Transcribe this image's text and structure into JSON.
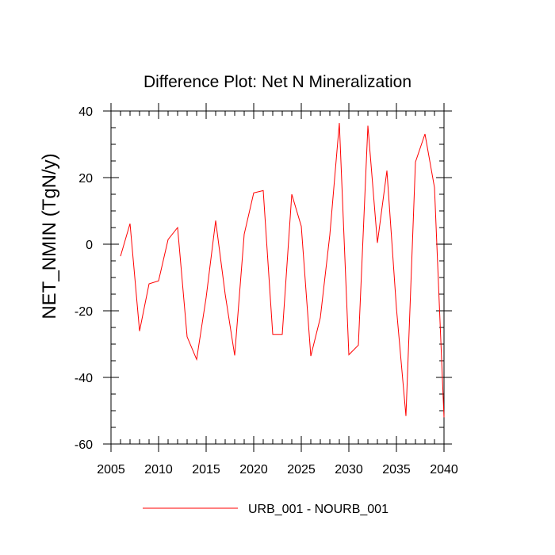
{
  "chart_data": {
    "type": "line",
    "title": "Difference Plot: Net N Mineralization",
    "xlabel": "",
    "ylabel": "NET_NMIN  (TgN/y)",
    "xlim": [
      2005,
      2040
    ],
    "ylim": [
      -60,
      40
    ],
    "x_ticks": [
      2005,
      2010,
      2015,
      2020,
      2025,
      2030,
      2035,
      2040
    ],
    "y_ticks": [
      -60,
      -40,
      -20,
      0,
      20,
      40
    ],
    "x_minor_step": 1,
    "y_minor_step": 5,
    "grid": false,
    "legend_position": "bottom-center",
    "series": [
      {
        "name": "URB_001 - NOURB_001",
        "color": "#ff0000",
        "x": [
          2006,
          2007,
          2008,
          2009,
          2010,
          2011,
          2012,
          2013,
          2014,
          2015,
          2016,
          2017,
          2018,
          2019,
          2020,
          2021,
          2022,
          2023,
          2024,
          2025,
          2026,
          2027,
          2028,
          2029,
          2030,
          2031,
          2032,
          2033,
          2034,
          2035,
          2036,
          2037,
          2038,
          2039,
          2040
        ],
        "values": [
          -3.6,
          6.2,
          -26.1,
          -11.9,
          -11.0,
          1.4,
          5.0,
          -27.8,
          -34.6,
          -16.0,
          7.1,
          -15.0,
          -33.4,
          3.0,
          15.4,
          16.1,
          -27.1,
          -27.1,
          15.0,
          5.4,
          -33.6,
          -22.1,
          2.8,
          36.4,
          -33.2,
          -30.3,
          35.6,
          0.4,
          22.1,
          -19.2,
          -51.6,
          24.7,
          33.1,
          17.0,
          -52.0
        ]
      }
    ]
  }
}
